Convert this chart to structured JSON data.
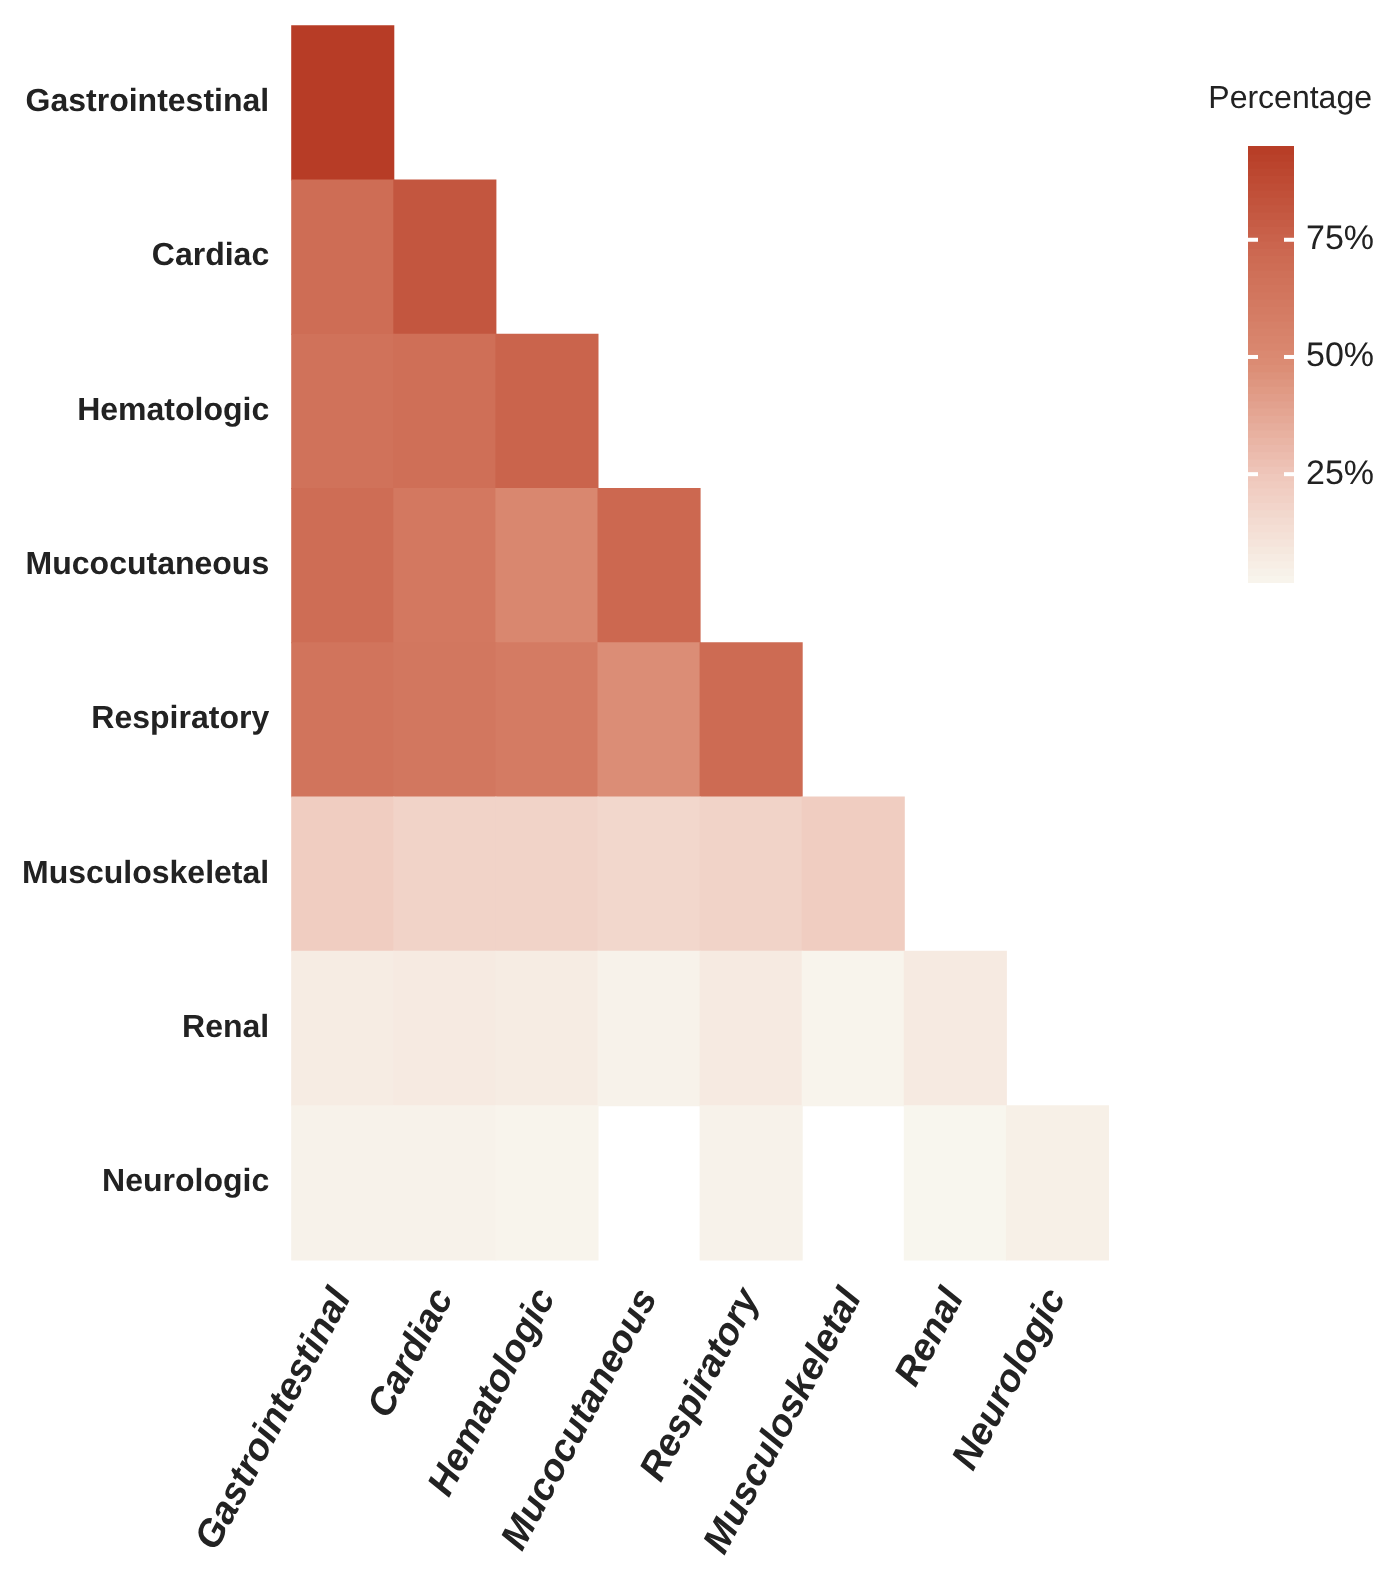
{
  "chart_data": {
    "type": "heatmap",
    "legend_title": "Percentage",
    "categories": [
      "Gastrointestinal",
      "Cardiac",
      "Hematologic",
      "Mucocutaneous",
      "Respiratory",
      "Musculoskeletal",
      "Renal",
      "Neurologic"
    ],
    "y_categories": [
      "Gastrointestinal",
      "Cardiac",
      "Hematologic",
      "Mucocutaneous",
      "Respiratory",
      "Musculoskeletal",
      "Renal",
      "Neurologic"
    ],
    "cells": [
      [
        95,
        null,
        null,
        null,
        null,
        null,
        null,
        null
      ],
      [
        70,
        82,
        null,
        null,
        null,
        null,
        null,
        null
      ],
      [
        66,
        68,
        75,
        null,
        null,
        null,
        null,
        null
      ],
      [
        70,
        62,
        52,
        73,
        null,
        null,
        null,
        null
      ],
      [
        65,
        63,
        60,
        48,
        71,
        null,
        null,
        null
      ],
      [
        22,
        19,
        19,
        17,
        19,
        22,
        null,
        null
      ],
      [
        7,
        8,
        7,
        4,
        8,
        3,
        8,
        null
      ],
      [
        4,
        4,
        3,
        null,
        4,
        null,
        2,
        5
      ]
    ],
    "clim": [
      2,
      95
    ],
    "cticks": [
      {
        "value": 25,
        "label": "25%"
      },
      {
        "value": 50,
        "label": "50%"
      },
      {
        "value": 75,
        "label": "75%"
      }
    ]
  }
}
